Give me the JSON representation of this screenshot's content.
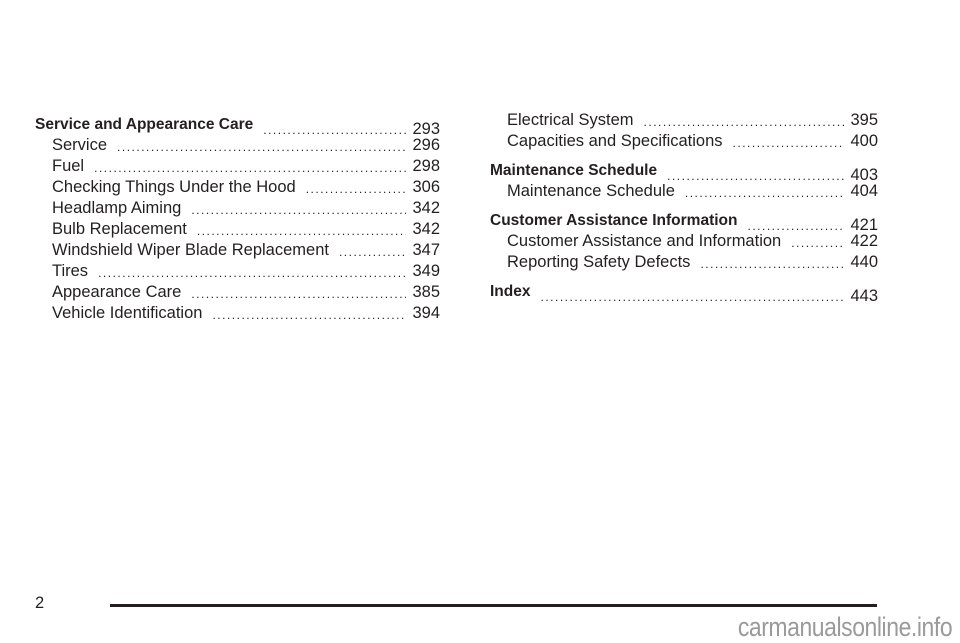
{
  "toc": {
    "left": [
      {
        "type": "heading",
        "title": "Service and Appearance Care",
        "page": "293"
      },
      {
        "type": "entry",
        "title": "Service",
        "page": "296"
      },
      {
        "type": "entry",
        "title": "Fuel",
        "page": "298"
      },
      {
        "type": "entry",
        "title": "Checking Things Under the Hood",
        "page": "306"
      },
      {
        "type": "entry",
        "title": "Headlamp Aiming",
        "page": "342"
      },
      {
        "type": "entry",
        "title": "Bulb Replacement",
        "page": "342"
      },
      {
        "type": "entry",
        "title": "Windshield Wiper Blade Replacement",
        "page": "347"
      },
      {
        "type": "entry",
        "title": "Tires",
        "page": "349"
      },
      {
        "type": "entry",
        "title": "Appearance Care",
        "page": "385"
      },
      {
        "type": "entry",
        "title": "Vehicle Identification",
        "page": "394"
      }
    ],
    "right": [
      {
        "type": "entry",
        "title": "Electrical System",
        "page": "395"
      },
      {
        "type": "entry",
        "title": "Capacities and Specifications",
        "page": "400"
      },
      {
        "type": "heading",
        "title": "Maintenance Schedule",
        "page": "403"
      },
      {
        "type": "entry",
        "title": "Maintenance Schedule",
        "page": "404"
      },
      {
        "type": "heading",
        "title": "Customer Assistance Information",
        "page": "421"
      },
      {
        "type": "entry",
        "title": "Customer Assistance and Information",
        "page": "422"
      },
      {
        "type": "entry",
        "title": "Reporting Safety Defects",
        "page": "440"
      },
      {
        "type": "heading",
        "title": "Index",
        "page": "443"
      }
    ]
  },
  "footer": {
    "page_number": "2"
  },
  "watermark": "carmanualsonline.info"
}
